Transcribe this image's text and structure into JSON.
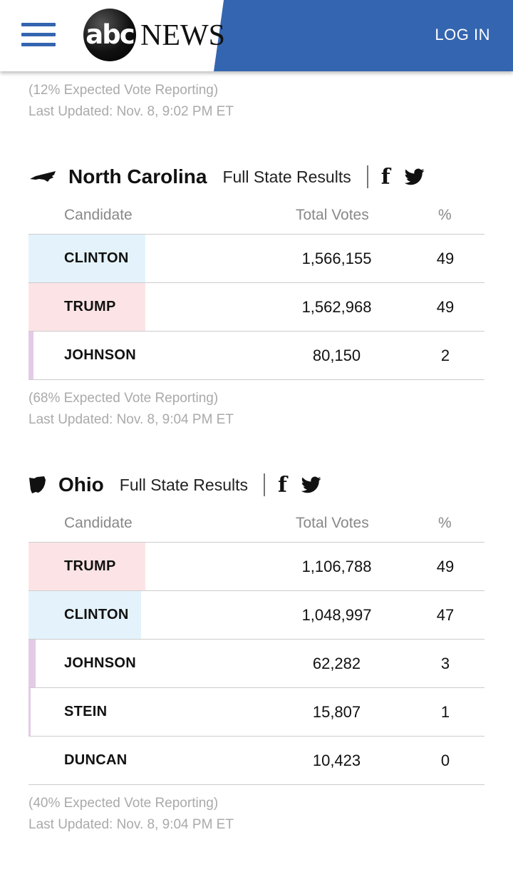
{
  "header": {
    "logo_abc": "abc",
    "logo_news": "NEWS",
    "login_label": "LOG IN",
    "accent_color": "#3465b0"
  },
  "prev_state": {
    "reporting": "(12% Expected Vote Reporting)",
    "updated": "Last Updated: Nov. 8, 9:02 PM ET"
  },
  "table_headers": {
    "candidate": "Candidate",
    "votes": "Total Votes",
    "pct": "%"
  },
  "states": [
    {
      "name": "North Carolina",
      "full_results": "Full State Results",
      "rows": [
        {
          "candidate": "CLINTON",
          "votes": "1,566,155",
          "pct": "49",
          "pct_value": 49,
          "color": "#e4f3fb"
        },
        {
          "candidate": "TRUMP",
          "votes": "1,562,968",
          "pct": "49",
          "pct_value": 49,
          "color": "#fce4e6"
        },
        {
          "candidate": "JOHNSON",
          "votes": "80,150",
          "pct": "2",
          "pct_value": 2,
          "color": "#e3cbe6"
        }
      ],
      "reporting": "(68% Expected Vote Reporting)",
      "updated": "Last Updated: Nov. 8, 9:04 PM ET"
    },
    {
      "name": "Ohio",
      "full_results": "Full State Results",
      "rows": [
        {
          "candidate": "TRUMP",
          "votes": "1,106,788",
          "pct": "49",
          "pct_value": 49,
          "color": "#fce4e6"
        },
        {
          "candidate": "CLINTON",
          "votes": "1,048,997",
          "pct": "47",
          "pct_value": 47,
          "color": "#e4f3fb"
        },
        {
          "candidate": "JOHNSON",
          "votes": "62,282",
          "pct": "3",
          "pct_value": 3,
          "color": "#e3cbe6"
        },
        {
          "candidate": "STEIN",
          "votes": "15,807",
          "pct": "1",
          "pct_value": 1,
          "color": "#e3cbe6"
        },
        {
          "candidate": "DUNCAN",
          "votes": "10,423",
          "pct": "0",
          "pct_value": 0,
          "color": "#e3cbe6"
        }
      ],
      "reporting": "(40% Expected Vote Reporting)",
      "updated": "Last Updated: Nov. 8, 9:04 PM ET"
    }
  ]
}
